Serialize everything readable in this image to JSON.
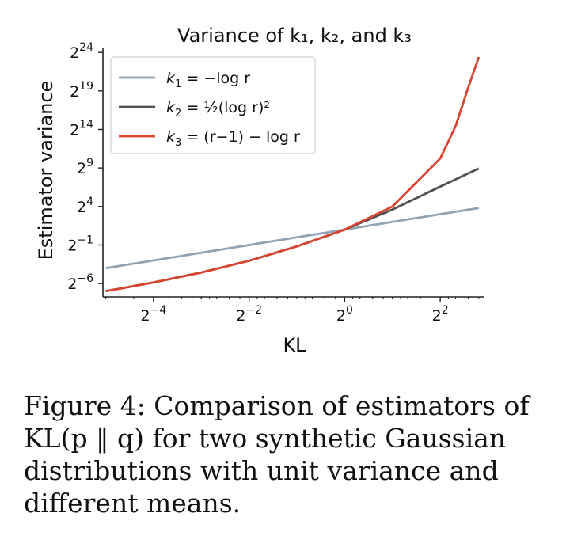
{
  "chart_data": {
    "type": "line",
    "title": "Variance of k₁, k₂, and k₃",
    "xlabel": "KL",
    "ylabel": "Estimator variance",
    "xscale": "log2",
    "yscale": "log2",
    "xlim": [
      0.03,
      7.6
    ],
    "ylim": [
      0.0047,
      26000000
    ],
    "xticks": [
      {
        "value": 0.0625,
        "base": "2",
        "exp": "−4"
      },
      {
        "value": 0.25,
        "base": "2",
        "exp": "−2"
      },
      {
        "value": 1,
        "base": "2",
        "exp": "0"
      },
      {
        "value": 4,
        "base": "2",
        "exp": "2"
      }
    ],
    "yticks": [
      {
        "value": 0.015625,
        "base": "2",
        "exp": "−6"
      },
      {
        "value": 0.5,
        "base": "2",
        "exp": "−1"
      },
      {
        "value": 16,
        "base": "2",
        "exp": "4"
      },
      {
        "value": 512,
        "base": "2",
        "exp": "9"
      },
      {
        "value": 16384,
        "base": "2",
        "exp": "14"
      },
      {
        "value": 524288,
        "base": "2",
        "exp": "19"
      },
      {
        "value": 16777216,
        "base": "2",
        "exp": "24"
      }
    ],
    "grid": false,
    "legend_position": "top-left",
    "series": [
      {
        "name": "k₁ = −log r",
        "color": "#8fa3b2",
        "points": [
          [
            0.03125,
            0.0625
          ],
          [
            0.0625,
            0.125
          ],
          [
            0.125,
            0.25
          ],
          [
            0.25,
            0.5
          ],
          [
            0.5,
            1
          ],
          [
            1,
            2
          ],
          [
            2,
            4
          ],
          [
            4,
            8
          ],
          [
            7,
            14
          ]
        ]
      },
      {
        "name": "k₂ = ½(log r)²",
        "color": "#505050",
        "points": [
          [
            0.03125,
            0.0079
          ],
          [
            0.0625,
            0.0173
          ],
          [
            0.125,
            0.0422
          ],
          [
            0.25,
            0.1215
          ],
          [
            0.5,
            0.4414
          ],
          [
            1,
            2
          ],
          [
            2,
            12.1
          ],
          [
            4,
            96
          ],
          [
            7,
            490
          ]
        ]
      },
      {
        "name": "k₃ = (r−1) − log r",
        "color": "#d9442e",
        "points": [
          [
            0.03125,
            0.0079
          ],
          [
            0.0625,
            0.0173
          ],
          [
            0.125,
            0.0422
          ],
          [
            0.25,
            0.1215
          ],
          [
            0.5,
            0.4414
          ],
          [
            1,
            2
          ],
          [
            2,
            16
          ],
          [
            4,
            1200
          ],
          [
            5,
            22000
          ],
          [
            6,
            700000
          ],
          [
            7,
            11000000
          ]
        ]
      }
    ]
  },
  "legend": [
    {
      "color": "#8fa3b2",
      "lhs": "k",
      "sub": "1",
      "rhs": " = −log r"
    },
    {
      "color": "#505050",
      "lhs": "k",
      "sub": "2",
      "rhs": " = ½(log r)²"
    },
    {
      "color": "#d9442e",
      "lhs": "k",
      "sub": "3",
      "rhs": " = (r−1) − log r"
    }
  ],
  "caption": "Figure 4: Comparison of estimators of KL(p ‖ q) for two synthetic Gaussian distributions with unit variance and different means."
}
